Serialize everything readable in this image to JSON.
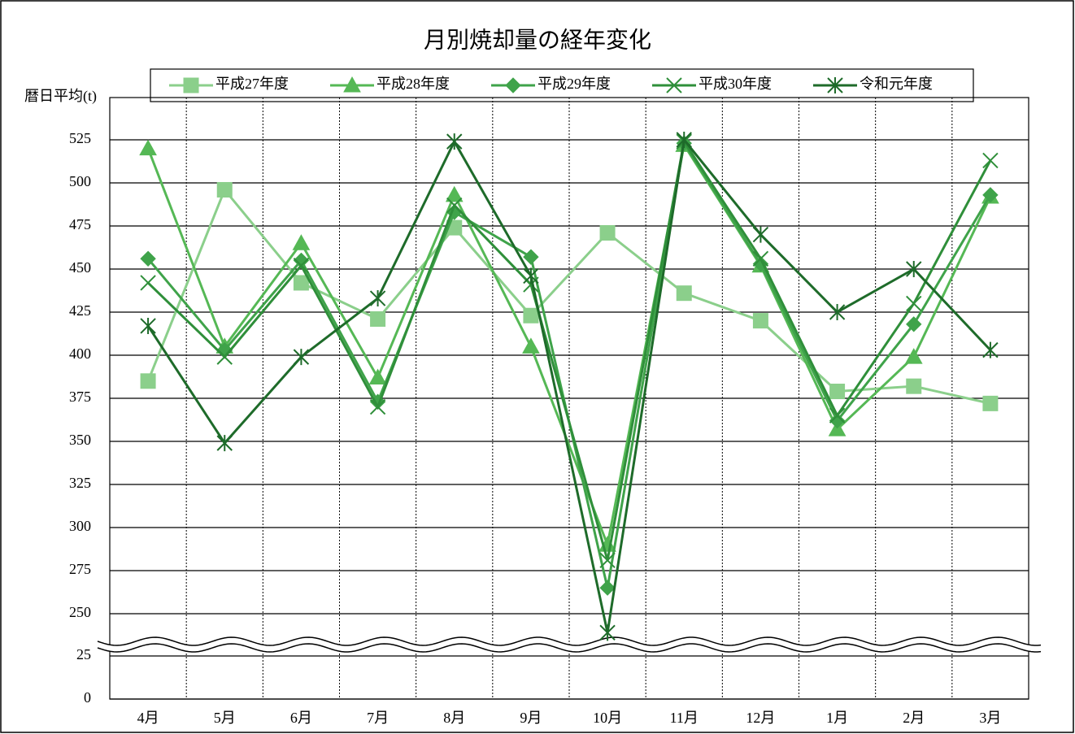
{
  "chart_data": {
    "type": "line",
    "title": "月別焼却量の経年変化",
    "y_label": "暦日平均(t)",
    "categories": [
      "4月",
      "5月",
      "6月",
      "7月",
      "8月",
      "9月",
      "10月",
      "11月",
      "12月",
      "1月",
      "2月",
      "3月"
    ],
    "series": [
      {
        "name": "平成27年度",
        "color": "#8bcf8b",
        "marker": "square",
        "values": [
          385,
          496,
          442,
          421,
          474,
          423,
          471,
          436,
          420,
          379,
          382,
          372
        ]
      },
      {
        "name": "平成28年度",
        "color": "#55b855",
        "marker": "triangle",
        "values": [
          520,
          405,
          465,
          387,
          493,
          405,
          290,
          522,
          452,
          357,
          399,
          492
        ]
      },
      {
        "name": "平成29年度",
        "color": "#3fa34a",
        "marker": "diamond",
        "values": [
          456,
          403,
          455,
          373,
          483,
          457,
          265,
          523,
          453,
          362,
          418,
          493
        ]
      },
      {
        "name": "平成30年度",
        "color": "#2f8f3a",
        "marker": "x",
        "values": [
          442,
          399,
          452,
          370,
          487,
          441,
          281,
          524,
          456,
          365,
          430,
          513
        ]
      },
      {
        "name": "令和元年度",
        "color": "#1e6b2a",
        "marker": "asterisk",
        "values": [
          417,
          349,
          399,
          433,
          524,
          446,
          239,
          525,
          470,
          425,
          450,
          403
        ]
      }
    ],
    "ylim": [
      0,
      550
    ],
    "y_break": [
      25,
      250
    ],
    "yticks": [
      0,
      25,
      250,
      275,
      300,
      325,
      350,
      375,
      400,
      425,
      450,
      475,
      500,
      525
    ],
    "grid": true
  }
}
